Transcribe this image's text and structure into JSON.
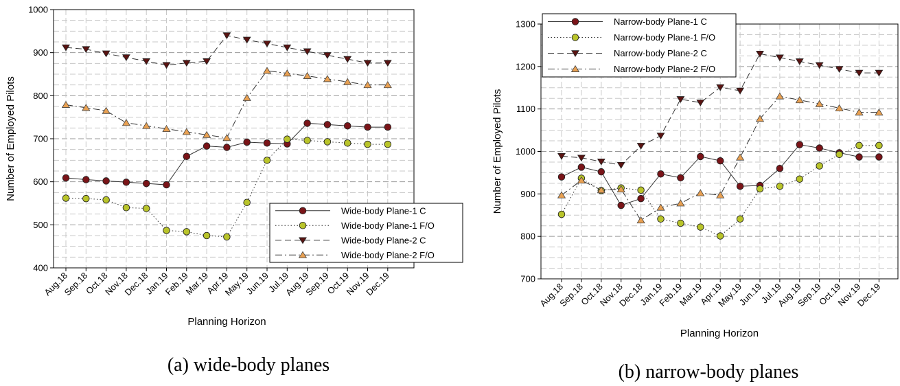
{
  "colors": {
    "circle_dark": "#7a1418",
    "circle_light": "#b9c42a",
    "tri_down": "#5a1412",
    "tri_up": "#e8a052",
    "grid_major": "#999999",
    "grid_minor": "#c8c8c8"
  },
  "chart_data": [
    {
      "type": "line",
      "caption": "(a) wide-body planes",
      "xlabel": "Planning Horizon",
      "ylabel": "Number of Employed Pilots",
      "ylim": [
        400,
        1000
      ],
      "yticks": [
        400,
        500,
        600,
        700,
        800,
        900,
        1000
      ],
      "grid": true,
      "legend_position": "bottom-right",
      "categories": [
        "Aug.18",
        "Sep.18",
        "Oct.18",
        "Nov.18",
        "Dec.18",
        "Jan.19",
        "Feb.19",
        "Mar.19",
        "Apr.19",
        "May.19",
        "Jun.19",
        "Jul.19",
        "Aug.19",
        "Sep.19",
        "Oct.19",
        "Nov.19",
        "Dec.19"
      ],
      "series": [
        {
          "name": "Wide-body Plane-1 C",
          "marker": "circle_dark",
          "line": "solid",
          "values": [
            609,
            605,
            602,
            599,
            596,
            593,
            659,
            683,
            680,
            692,
            690,
            688,
            736,
            733,
            730,
            727,
            727
          ]
        },
        {
          "name": "Wide-body Plane-1 F/O",
          "marker": "circle_light",
          "line": "dotted",
          "values": [
            562,
            561,
            558,
            540,
            538,
            487,
            484,
            475,
            472,
            552,
            650,
            699,
            696,
            693,
            690,
            687,
            687
          ]
        },
        {
          "name": "Wide-body Plane-2 C",
          "marker": "tri_down",
          "line": "dashed",
          "values": [
            912,
            908,
            898,
            889,
            880,
            871,
            876,
            880,
            940,
            930,
            921,
            912,
            903,
            894,
            885,
            876,
            876
          ]
        },
        {
          "name": "Wide-body Plane-2 F/O",
          "marker": "tri_up",
          "line": "dashdot",
          "values": [
            779,
            772,
            765,
            737,
            730,
            723,
            716,
            709,
            702,
            795,
            858,
            852,
            846,
            839,
            832,
            825,
            825
          ]
        }
      ]
    },
    {
      "type": "line",
      "caption": "(b) narrow-body planes",
      "xlabel": "Planning Horizon",
      "ylabel": "Number of Employed Pilots",
      "ylim": [
        700,
        1300
      ],
      "yticks": [
        700,
        800,
        900,
        1000,
        1100,
        1200,
        1300
      ],
      "grid": true,
      "legend_position": "top-left",
      "categories": [
        "Aug.18",
        "Sep.18",
        "Oct.18",
        "Nov.18",
        "Dec.18",
        "Jan.19",
        "Feb.19",
        "Mar.19",
        "Apr.19",
        "May.19",
        "Jun.19",
        "Jul.19",
        "Aug.19",
        "Sep.19",
        "Oct.19",
        "Nov.19",
        "Dec.19"
      ],
      "series": [
        {
          "name": "Narrow-body Plane-1 C",
          "marker": "circle_dark",
          "line": "solid",
          "values": [
            940,
            963,
            952,
            873,
            889,
            947,
            938,
            988,
            978,
            918,
            920,
            960,
            1016,
            1008,
            997,
            987,
            987
          ]
        },
        {
          "name": "Narrow-body Plane-1 F/O",
          "marker": "circle_light",
          "line": "dotted",
          "values": [
            852,
            937,
            908,
            914,
            909,
            841,
            831,
            822,
            801,
            841,
            912,
            918,
            935,
            966,
            993,
            1014,
            1014
          ]
        },
        {
          "name": "Narrow-body Plane-2 C",
          "marker": "tri_down",
          "line": "dashed",
          "values": [
            989,
            985,
            976,
            968,
            1013,
            1037,
            1123,
            1115,
            1151,
            1143,
            1230,
            1221,
            1212,
            1203,
            1194,
            1185,
            1185
          ]
        },
        {
          "name": "Narrow-body Plane-2 F/O",
          "marker": "tri_up",
          "line": "dashdot",
          "values": [
            897,
            932,
            909,
            911,
            838,
            868,
            878,
            902,
            897,
            986,
            1077,
            1130,
            1121,
            1112,
            1102,
            1092,
            1092
          ]
        }
      ]
    }
  ]
}
